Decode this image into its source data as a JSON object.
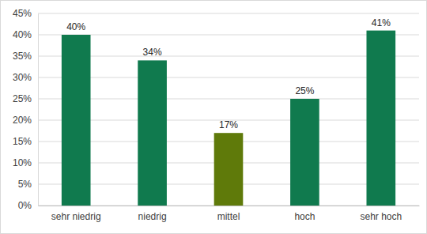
{
  "chart_data": {
    "type": "bar",
    "categories": [
      "sehr niedrig",
      "niedrig",
      "mittel",
      "hoch",
      "sehr hoch"
    ],
    "values": [
      40,
      34,
      17,
      25,
      41
    ],
    "value_labels": [
      "40%",
      "34%",
      "17%",
      "25%",
      "41%"
    ],
    "colors": [
      "#107a4e",
      "#107a4e",
      "#5f7a0a",
      "#107a4e",
      "#107a4e"
    ],
    "ylim": [
      0,
      45
    ],
    "yticks": [
      {
        "value": 0,
        "label": "0%"
      },
      {
        "value": 5,
        "label": "5%"
      },
      {
        "value": 10,
        "label": "10%"
      },
      {
        "value": 15,
        "label": "15%"
      },
      {
        "value": 20,
        "label": "20%"
      },
      {
        "value": 25,
        "label": "25%"
      },
      {
        "value": 30,
        "label": "30%"
      },
      {
        "value": 35,
        "label": "35%"
      },
      {
        "value": 40,
        "label": "40%"
      },
      {
        "value": 45,
        "label": "45%"
      }
    ],
    "grid": true,
    "data_labels": true
  }
}
